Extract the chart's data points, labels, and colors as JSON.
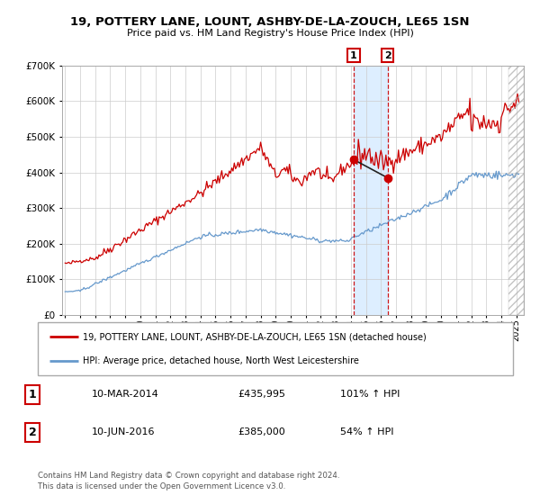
{
  "title": "19, POTTERY LANE, LOUNT, ASHBY-DE-LA-ZOUCH, LE65 1SN",
  "subtitle": "Price paid vs. HM Land Registry's House Price Index (HPI)",
  "legend_line1": "19, POTTERY LANE, LOUNT, ASHBY-DE-LA-ZOUCH, LE65 1SN (detached house)",
  "legend_line2": "HPI: Average price, detached house, North West Leicestershire",
  "transaction1_date": "10-MAR-2014",
  "transaction1_price": "£435,995",
  "transaction1_hpi": "101% ↑ HPI",
  "transaction2_date": "10-JUN-2016",
  "transaction2_price": "£385,000",
  "transaction2_hpi": "54% ↑ HPI",
  "footer": "Contains HM Land Registry data © Crown copyright and database right 2024.\nThis data is licensed under the Open Government Licence v3.0.",
  "red_line_color": "#cc0000",
  "blue_line_color": "#6699cc",
  "background_color": "#ffffff",
  "grid_color": "#cccccc",
  "shade_color": "#ddeeff",
  "t1_x": 2014.19,
  "t1_y": 435995,
  "t2_x": 2016.44,
  "t2_y": 385000,
  "ylim": [
    0,
    700000
  ],
  "xlim": [
    1994.8,
    2025.5
  ]
}
